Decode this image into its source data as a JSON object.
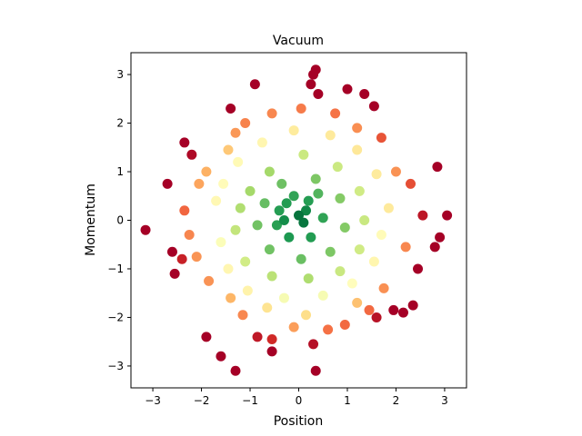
{
  "chart_data": {
    "type": "scatter",
    "title": "Vacuum",
    "xlabel": "Position",
    "ylabel": "Momentum",
    "xlim": [
      -3.45,
      3.45
    ],
    "ylim": [
      -3.45,
      3.45
    ],
    "xticks": [
      -3,
      -2,
      -1,
      0,
      1,
      2,
      3
    ],
    "yticks": [
      -3,
      -2,
      -1,
      0,
      1,
      2,
      3
    ],
    "xtick_labels": [
      "−3",
      "−2",
      "−1",
      "0",
      "1",
      "2",
      "3"
    ],
    "ytick_labels": [
      "−3",
      "−2",
      "−1",
      "0",
      "1",
      "2",
      "3"
    ],
    "grid": false,
    "color_map": "RdYlGn, colored by density (green = dense center, red = sparse edge)",
    "colors": {
      "dense": "#006837",
      "mid": "#ffffbf",
      "sparse": "#a50026"
    },
    "points": [
      [
        -3.15,
        -0.2
      ],
      [
        -2.7,
        0.75
      ],
      [
        -2.6,
        -0.65
      ],
      [
        -2.55,
        -1.1
      ],
      [
        -2.35,
        1.6
      ],
      [
        -2.2,
        1.35
      ],
      [
        -1.9,
        -2.4
      ],
      [
        -1.6,
        -2.8
      ],
      [
        -1.4,
        2.3
      ],
      [
        -1.3,
        -3.1
      ],
      [
        -1.1,
        2.0
      ],
      [
        -0.9,
        2.8
      ],
      [
        -0.85,
        -2.4
      ],
      [
        -0.55,
        -2.45
      ],
      [
        -0.55,
        -2.7
      ],
      [
        0.25,
        2.8
      ],
      [
        0.3,
        3.0
      ],
      [
        0.35,
        3.1
      ],
      [
        0.4,
        2.6
      ],
      [
        0.3,
        -2.55
      ],
      [
        0.35,
        -3.1
      ],
      [
        1.0,
        2.7
      ],
      [
        1.35,
        2.6
      ],
      [
        1.55,
        2.35
      ],
      [
        2.85,
        1.1
      ],
      [
        3.05,
        0.1
      ],
      [
        2.9,
        -0.35
      ],
      [
        2.8,
        -0.55
      ],
      [
        2.45,
        -1.0
      ],
      [
        2.35,
        -1.75
      ],
      [
        2.15,
        -1.9
      ],
      [
        1.95,
        -1.85
      ],
      [
        1.6,
        -2.0
      ],
      [
        1.45,
        -1.85
      ],
      [
        0.6,
        -2.25
      ],
      [
        -0.1,
        -2.2
      ],
      [
        -1.15,
        -1.95
      ],
      [
        -2.1,
        -0.75
      ],
      [
        -2.4,
        -0.8
      ],
      [
        -2.05,
        0.75
      ],
      [
        -1.9,
        1.0
      ],
      [
        -1.3,
        1.8
      ],
      [
        -1.45,
        1.45
      ],
      [
        -0.55,
        2.2
      ],
      [
        0.05,
        2.3
      ],
      [
        0.75,
        2.2
      ],
      [
        1.2,
        1.9
      ],
      [
        1.7,
        1.7
      ],
      [
        2.0,
        1.0
      ],
      [
        2.3,
        0.75
      ],
      [
        2.55,
        0.1
      ],
      [
        2.2,
        -0.55
      ],
      [
        1.75,
        -1.4
      ],
      [
        1.2,
        -1.7
      ],
      [
        0.95,
        -2.15
      ],
      [
        0.15,
        -1.95
      ],
      [
        -0.65,
        -1.8
      ],
      [
        -1.4,
        -1.6
      ],
      [
        -1.85,
        -1.25
      ],
      [
        -2.25,
        -0.3
      ],
      [
        -2.35,
        0.2
      ],
      [
        -1.7,
        0.4
      ],
      [
        -1.6,
        -0.45
      ],
      [
        -1.45,
        -1.0
      ],
      [
        -1.05,
        -1.45
      ],
      [
        -0.3,
        -1.6
      ],
      [
        0.5,
        -1.55
      ],
      [
        1.1,
        -1.3
      ],
      [
        1.55,
        -0.85
      ],
      [
        1.7,
        -0.3
      ],
      [
        1.85,
        0.25
      ],
      [
        1.6,
        0.95
      ],
      [
        1.2,
        1.45
      ],
      [
        0.65,
        1.75
      ],
      [
        -0.1,
        1.85
      ],
      [
        -0.75,
        1.6
      ],
      [
        -1.25,
        1.2
      ],
      [
        -1.55,
        0.75
      ],
      [
        -1.0,
        0.6
      ],
      [
        -0.6,
        1.0
      ],
      [
        0.1,
        1.35
      ],
      [
        0.8,
        1.1
      ],
      [
        1.25,
        0.6
      ],
      [
        1.35,
        0.0
      ],
      [
        1.25,
        -0.6
      ],
      [
        0.85,
        -1.05
      ],
      [
        0.2,
        -1.2
      ],
      [
        -0.55,
        -1.15
      ],
      [
        -1.1,
        -0.85
      ],
      [
        -1.3,
        -0.2
      ],
      [
        -1.2,
        0.25
      ],
      [
        -0.7,
        0.35
      ],
      [
        -0.35,
        0.75
      ],
      [
        0.35,
        0.85
      ],
      [
        0.85,
        0.45
      ],
      [
        0.95,
        -0.15
      ],
      [
        0.65,
        -0.65
      ],
      [
        0.05,
        -0.8
      ],
      [
        -0.6,
        -0.6
      ],
      [
        -0.85,
        -0.1
      ],
      [
        -0.4,
        0.2
      ],
      [
        0.2,
        0.4
      ],
      [
        0.5,
        0.05
      ],
      [
        0.25,
        -0.35
      ],
      [
        -0.2,
        -0.35
      ],
      [
        -0.1,
        0.5
      ],
      [
        0.4,
        0.55
      ],
      [
        -0.45,
        -0.1
      ],
      [
        0.0,
        0.1
      ],
      [
        -0.25,
        0.35
      ],
      [
        0.1,
        -0.05
      ],
      [
        -0.3,
        0.0
      ],
      [
        0.15,
        0.2
      ]
    ]
  }
}
